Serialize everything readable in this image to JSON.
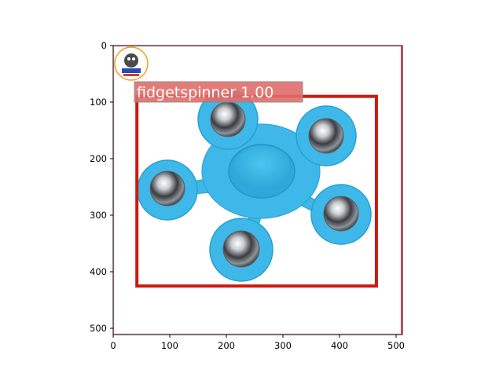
{
  "image": {
    "subject": "fidget spinner photo",
    "background_color": "#ffffff",
    "spinner_color": "#3db8e8",
    "bearing_color": "#9aa0a6",
    "logo": "circular emblem logo (top-left corner)"
  },
  "detection": {
    "label": "fidgetspinner",
    "score": "1.00",
    "text": "fidgetspinner 1.00",
    "box_color": "#cc1a10",
    "label_bg_color": "#e06e6a",
    "box": {
      "x1": 42,
      "y1": 90,
      "x2": 466,
      "y2": 426
    }
  },
  "axes": {
    "x_ticks": [
      "0",
      "100",
      "200",
      "300",
      "400",
      "500"
    ],
    "y_ticks": [
      "0",
      "100",
      "200",
      "300",
      "400",
      "500"
    ],
    "x_range": [
      0,
      512
    ],
    "y_range": [
      0,
      512
    ]
  }
}
